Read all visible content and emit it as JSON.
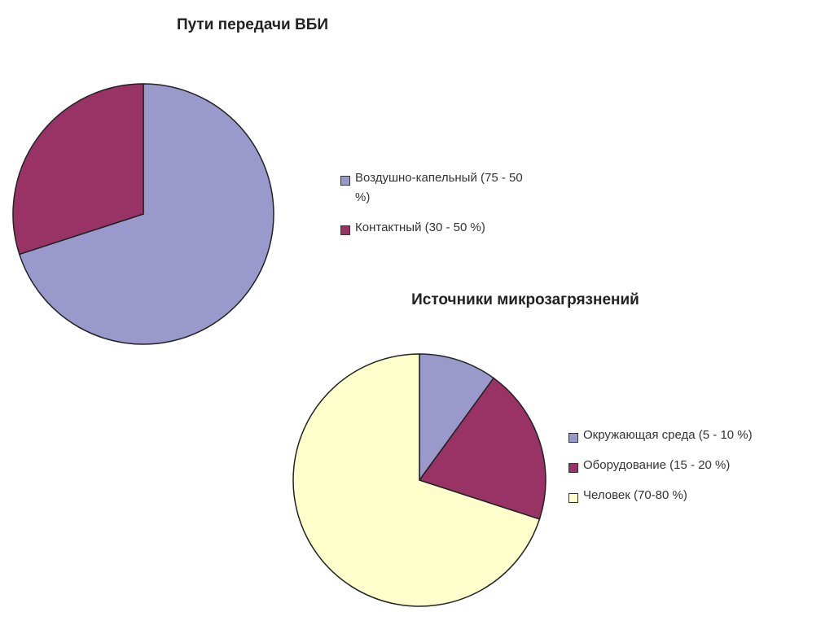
{
  "chart_data": [
    {
      "type": "pie",
      "title": "Пути передачи ВБИ",
      "categories": [
        "Воздушно-капельный (75 - 50 %)",
        "Контактный (30 - 50 %)"
      ],
      "values": [
        70,
        30
      ],
      "colors": [
        "#9999cc",
        "#993366"
      ]
    },
    {
      "type": "pie",
      "title": "Источники микрозагрязнений",
      "categories": [
        "Окружающая среда (5 - 10 %)",
        "Оборудование (15 - 20 %)",
        "Человек (70-80 %)"
      ],
      "values": [
        10,
        20,
        70
      ],
      "colors": [
        "#9999cc",
        "#993366",
        "#ffffcc"
      ]
    }
  ]
}
